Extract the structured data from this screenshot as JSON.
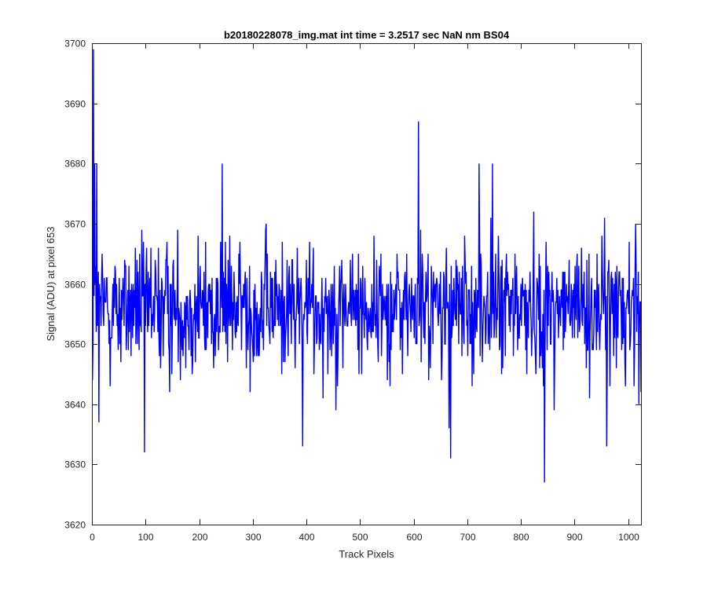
{
  "chart_data": {
    "type": "line",
    "title": "b20180228078_img.mat int time = 3.2517 sec  NaN nm BS04",
    "xlabel": "Track Pixels",
    "ylabel": "Signal (ADU) at pixel 653",
    "xlim": [
      0,
      1024
    ],
    "ylim": [
      3620,
      3700
    ],
    "xticks": [
      0,
      100,
      200,
      300,
      400,
      500,
      600,
      700,
      800,
      900,
      1000
    ],
    "yticks": [
      3620,
      3630,
      3640,
      3650,
      3660,
      3670,
      3680,
      3690,
      3700
    ],
    "grid": false,
    "legend": "none",
    "series": [
      {
        "color": "#0000ff",
        "x_start": 1,
        "x_step": 1,
        "point_count": 1024,
        "mean": 3656,
        "std": 6.5,
        "noted_points": [
          {
            "x": 1,
            "y": 3644
          },
          {
            "x": 3,
            "y": 3699
          },
          {
            "x": 5,
            "y": 3680
          },
          {
            "x": 9,
            "y": 3680
          },
          {
            "x": 13,
            "y": 3637
          },
          {
            "x": 98,
            "y": 3632
          },
          {
            "x": 243,
            "y": 3680
          },
          {
            "x": 393,
            "y": 3633
          },
          {
            "x": 609,
            "y": 3687
          },
          {
            "x": 666,
            "y": 3636
          },
          {
            "x": 669,
            "y": 3631
          },
          {
            "x": 722,
            "y": 3680
          },
          {
            "x": 747,
            "y": 3680
          },
          {
            "x": 844,
            "y": 3627
          },
          {
            "x": 960,
            "y": 3633
          },
          {
            "x": 1014,
            "y": 3670
          },
          {
            "x": 1020,
            "y": 3640
          },
          {
            "x": 1024,
            "y": 3642
          }
        ]
      }
    ]
  }
}
